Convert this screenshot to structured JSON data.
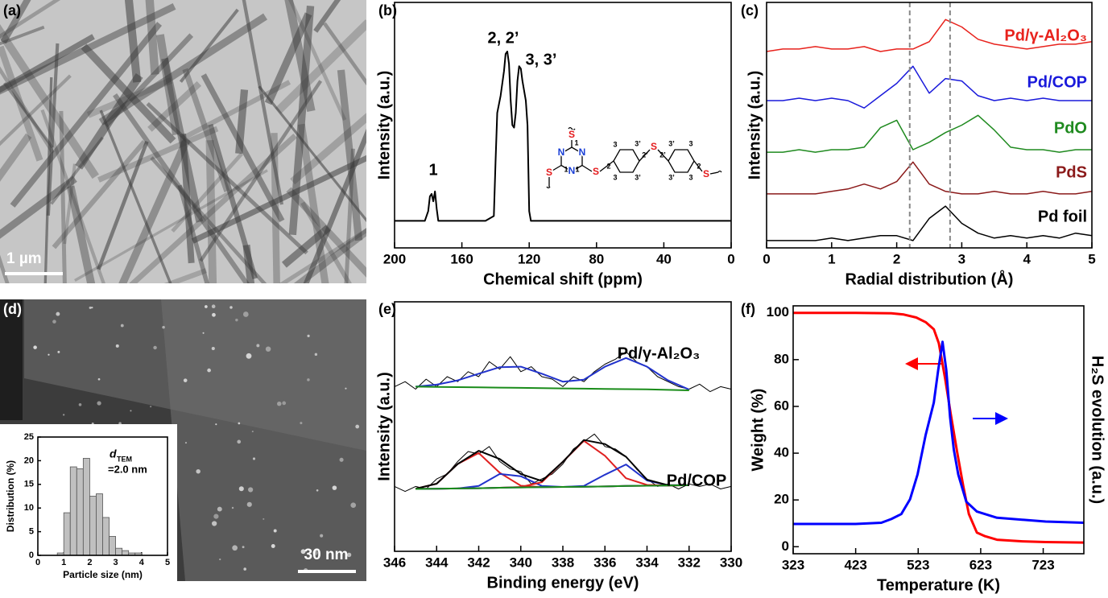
{
  "images": [
    {
      "panel_label": "(a)",
      "scale_bar": "1 µm"
    },
    {
      "panel_label": "(d)",
      "scale_bar": "30 nm"
    }
  ],
  "chart_data": [
    {
      "type": "line",
      "panel_label": "(b)",
      "x_label": "Chemical shift (ppm)",
      "y_label": "Intensity (a.u.)",
      "annotations": [
        "1",
        "2, 2’",
        "3, 3’"
      ],
      "structure_labels": [
        "S",
        "S",
        "S",
        "S",
        "S",
        "N",
        "N",
        "N",
        "1",
        "1",
        "1",
        "2",
        "3",
        "3’",
        "2’",
        "3",
        "3’",
        "2’",
        "3’",
        "3",
        "2",
        "3’",
        "3"
      ],
      "x": [
        200,
        190,
        182,
        180,
        179,
        178,
        177,
        176,
        175,
        174,
        160,
        146,
        141,
        140,
        139,
        137,
        135,
        134,
        133,
        132,
        131,
        130,
        129,
        128,
        127,
        126,
        125,
        124,
        122,
        121,
        120,
        119,
        100,
        60,
        0
      ],
      "series": [
        {
          "color": "#000000",
          "values": [
            0.11,
            0.11,
            0.11,
            0.15,
            0.21,
            0.22,
            0.19,
            0.23,
            0.16,
            0.11,
            0.11,
            0.11,
            0.13,
            0.35,
            0.55,
            0.62,
            0.72,
            0.79,
            0.8,
            0.75,
            0.6,
            0.5,
            0.49,
            0.55,
            0.68,
            0.74,
            0.73,
            0.68,
            0.6,
            0.5,
            0.15,
            0.11,
            0.11,
            0.11,
            0.11
          ]
        }
      ],
      "xlim": [
        200,
        0
      ],
      "xticks": [
        200,
        160,
        120,
        80,
        40,
        0
      ],
      "ylim": [
        0,
        1
      ]
    },
    {
      "type": "line",
      "panel_label": "(c)",
      "x_label": "Radial distribution (Å)",
      "y_label": "Intensity (a.u.)",
      "x": [
        0,
        0.25,
        0.5,
        0.75,
        1,
        1.25,
        1.5,
        1.75,
        2,
        2.25,
        2.5,
        2.75,
        3,
        3.25,
        3.5,
        3.75,
        4,
        4.25,
        4.5,
        4.75,
        5
      ],
      "series": [
        {
          "name": "Pd/γ-Al₂O₃",
          "color": "#e8221c",
          "values": [
            0.8,
            0.81,
            0.81,
            0.82,
            0.81,
            0.81,
            0.82,
            0.8,
            0.81,
            0.81,
            0.84,
            0.93,
            0.9,
            0.85,
            0.83,
            0.82,
            0.81,
            0.82,
            0.83,
            0.83,
            0.84
          ]
        },
        {
          "name": "Pd/COP",
          "color": "#1a1adb",
          "values": [
            0.6,
            0.6,
            0.61,
            0.6,
            0.61,
            0.6,
            0.57,
            0.62,
            0.67,
            0.74,
            0.63,
            0.69,
            0.68,
            0.62,
            0.6,
            0.61,
            0.6,
            0.61,
            0.6,
            0.6,
            0.6
          ]
        },
        {
          "name": "PdO",
          "color": "#1f8a1f",
          "values": [
            0.39,
            0.39,
            0.4,
            0.39,
            0.4,
            0.4,
            0.41,
            0.49,
            0.52,
            0.4,
            0.43,
            0.47,
            0.5,
            0.54,
            0.48,
            0.41,
            0.4,
            0.4,
            0.39,
            0.4,
            0.4
          ]
        },
        {
          "name": "PdS",
          "color": "#8b1a1a",
          "values": [
            0.22,
            0.22,
            0.22,
            0.22,
            0.23,
            0.24,
            0.26,
            0.24,
            0.27,
            0.35,
            0.26,
            0.23,
            0.22,
            0.22,
            0.23,
            0.22,
            0.22,
            0.23,
            0.22,
            0.22,
            0.23
          ]
        },
        {
          "name": "Pd foil",
          "color": "#000000",
          "values": [
            0.03,
            0.03,
            0.03,
            0.03,
            0.04,
            0.03,
            0.04,
            0.05,
            0.05,
            0.03,
            0.12,
            0.17,
            0.1,
            0.06,
            0.04,
            0.05,
            0.04,
            0.05,
            0.04,
            0.06,
            0.05
          ]
        }
      ],
      "ref_lines": [
        2.2,
        2.82
      ],
      "xlim": [
        0,
        5
      ],
      "xticks": [
        0,
        1,
        2,
        3,
        4,
        5
      ],
      "ylim": [
        0,
        1
      ]
    },
    {
      "type": "histogram",
      "x_label": "Particle size (nm)",
      "y_label": "Distribution (%)",
      "annotation": {
        "symbol": "d",
        "subscript": "TEM",
        "text": "=2.0 nm"
      },
      "bins": [
        0.75,
        1,
        1.25,
        1.5,
        1.75,
        2,
        2.25,
        2.5,
        2.75,
        3,
        3.25,
        3.5,
        3.75,
        4
      ],
      "values": [
        0.5,
        9,
        18.7,
        18.3,
        20.5,
        12.5,
        13,
        8,
        4,
        1.5,
        1,
        0.5,
        0.5
      ],
      "color": "#c0c0c0",
      "xlim": [
        0,
        5
      ],
      "xticks": [
        0,
        1,
        2,
        3,
        4,
        5
      ],
      "ylim": [
        0,
        25
      ],
      "yticks": [
        0,
        5,
        10,
        15,
        20,
        25
      ]
    },
    {
      "type": "line",
      "panel_label": "(e)",
      "x_label": "Binding energy (eV)",
      "y_label": "Intensity (a.u.)",
      "annotations": [
        "Pd/γ-Al₂O₃",
        "Pd/COP"
      ],
      "series": [
        {
          "color": "#000000",
          "x": [
            346,
            345.5,
            345,
            344.5,
            344,
            343.5,
            343,
            342.5,
            342,
            341.5,
            341,
            340.5,
            340,
            339.5,
            339,
            338.5,
            338,
            337.5,
            337,
            336.5,
            336,
            335.5,
            335,
            334.5,
            334,
            333.5,
            333,
            332.5,
            332,
            331.5,
            331,
            330.5,
            330
          ],
          "values": [
            0.66,
            0.68,
            0.65,
            0.69,
            0.66,
            0.7,
            0.68,
            0.72,
            0.7,
            0.76,
            0.73,
            0.78,
            0.72,
            0.74,
            0.7,
            0.69,
            0.66,
            0.7,
            0.68,
            0.72,
            0.75,
            0.77,
            0.8,
            0.76,
            0.74,
            0.7,
            0.68,
            0.66,
            0.65,
            0.67,
            0.64,
            0.66,
            0.65
          ]
        },
        {
          "color": "#000000",
          "x": [
            346,
            345.5,
            345,
            344.5,
            344,
            343.5,
            343,
            342.5,
            342,
            341.5,
            341,
            340.5,
            340,
            339.5,
            339,
            338.5,
            338,
            337.5,
            337,
            336.5,
            336,
            335.5,
            335,
            334.5,
            334,
            333.5,
            333,
            332.5,
            332,
            331.5,
            331,
            330.5,
            330
          ],
          "values": [
            0.26,
            0.24,
            0.26,
            0.25,
            0.29,
            0.31,
            0.36,
            0.4,
            0.39,
            0.42,
            0.36,
            0.33,
            0.32,
            0.27,
            0.29,
            0.31,
            0.35,
            0.41,
            0.44,
            0.47,
            0.42,
            0.41,
            0.38,
            0.33,
            0.29,
            0.26,
            0.27,
            0.25,
            0.27,
            0.26,
            0.27,
            0.25,
            0.26
          ]
        },
        {
          "color": "#e02020",
          "x": [
            346,
            345,
            344,
            343,
            342,
            341,
            340,
            339,
            338,
            337,
            336,
            335,
            334,
            333,
            332,
            331,
            330
          ],
          "values": [
            null,
            0.251,
            0.271,
            0.35,
            0.394,
            0.315,
            0.263,
            0.257,
            0.258,
            0.259,
            0.26,
            0.262,
            0.263,
            0.264,
            0.265,
            null,
            null
          ]
        },
        {
          "color": "#2233cc",
          "x": [
            346,
            345,
            344,
            343,
            342,
            341,
            340,
            339,
            338,
            337,
            336,
            335,
            334,
            333,
            332,
            331,
            330
          ],
          "values": [
            null,
            0.25,
            0.251,
            0.252,
            0.262,
            0.31,
            0.301,
            0.262,
            0.258,
            0.259,
            0.26,
            0.262,
            0.263,
            0.264,
            0.265,
            null,
            null
          ]
        },
        {
          "color": "#e02020",
          "x": [
            346,
            345,
            344,
            343,
            342,
            341,
            340,
            339,
            338,
            337,
            336,
            335,
            334,
            333,
            332,
            331,
            330
          ],
          "values": [
            null,
            0.25,
            0.251,
            0.252,
            0.253,
            0.255,
            0.258,
            0.277,
            0.359,
            0.443,
            0.383,
            0.293,
            0.266,
            0.264,
            0.265,
            null,
            null
          ]
        },
        {
          "color": "#2233cc",
          "x": [
            346,
            345,
            344,
            343,
            342,
            341,
            340,
            339,
            338,
            337,
            336,
            335,
            334,
            333,
            332,
            331,
            330
          ],
          "values": [
            null,
            0.25,
            0.251,
            0.252,
            0.253,
            0.255,
            0.256,
            0.257,
            0.258,
            0.262,
            0.307,
            0.348,
            0.284,
            0.265,
            0.265,
            null,
            null
          ]
        },
        {
          "color": "#000000",
          "x": [
            346,
            345,
            344,
            343,
            342,
            341,
            340,
            339,
            338,
            337,
            336,
            335,
            334,
            333,
            332,
            331,
            330
          ],
          "values": [
            null,
            0.251,
            0.271,
            0.35,
            0.403,
            0.37,
            0.31,
            0.282,
            0.359,
            0.446,
            0.43,
            0.379,
            0.287,
            0.265,
            0.265,
            null,
            null
          ]
        },
        {
          "color": "#2233cc",
          "x": [
            346,
            345,
            344,
            343,
            342,
            341,
            340,
            339,
            338,
            337,
            336,
            335,
            334,
            333,
            332,
            331,
            330
          ],
          "values": [
            null,
            0.66,
            0.668,
            0.685,
            0.712,
            0.738,
            0.74,
            0.712,
            0.68,
            0.688,
            0.74,
            0.775,
            0.74,
            0.685,
            0.648,
            null,
            null
          ]
        },
        {
          "color": "#1a8c1a",
          "x": [
            346,
            345,
            344,
            343,
            342,
            341,
            340,
            339,
            338,
            337,
            336,
            335,
            334,
            333,
            332,
            331,
            330
          ],
          "values": [
            null,
            0.66,
            0.659,
            0.658,
            0.657,
            0.656,
            0.655,
            0.654,
            0.653,
            0.652,
            0.651,
            0.65,
            0.649,
            0.647,
            0.645,
            null,
            null
          ]
        },
        {
          "color": "#1a8c1a",
          "x": [
            346,
            345,
            344,
            343,
            342,
            341,
            340,
            339,
            338,
            337,
            336,
            335,
            334,
            333,
            332,
            331,
            330
          ],
          "values": [
            null,
            0.25,
            0.251,
            0.252,
            0.253,
            0.255,
            0.256,
            0.257,
            0.258,
            0.259,
            0.26,
            0.262,
            0.263,
            0.264,
            0.265,
            null,
            null
          ]
        }
      ],
      "xlim": [
        346,
        330
      ],
      "xticks": [
        346,
        344,
        342,
        340,
        338,
        336,
        334,
        332,
        330
      ],
      "ylim": [
        0,
        1
      ]
    },
    {
      "type": "line",
      "panel_label": "(f)",
      "x_label": "Temperature (K)",
      "y_label": "Weight (%)",
      "y2_label": "H₂S evolution (a.u.)",
      "series": [
        {
          "color": "#ff0000",
          "x": [
            323,
            423,
            480,
            500,
            520,
            535,
            548,
            556,
            566,
            575,
            585,
            595,
            604,
            617,
            630,
            649,
            690,
            727,
            788
          ],
          "values": [
            100,
            100,
            99.8,
            99.3,
            98,
            96,
            93,
            87,
            72,
            57,
            41,
            26,
            14,
            6,
            4.5,
            3,
            2.3,
            2,
            1.8
          ]
        },
        {
          "color": "#0000ff",
          "axis": "y2",
          "x": [
            323,
            423,
            464,
            480,
            496,
            510,
            522,
            535,
            548,
            555,
            562,
            568,
            574,
            580,
            587,
            600,
            617,
            649,
            727,
            788
          ],
          "values": [
            0.12,
            0.12,
            0.125,
            0.14,
            0.16,
            0.22,
            0.32,
            0.48,
            0.61,
            0.74,
            0.855,
            0.74,
            0.55,
            0.42,
            0.32,
            0.21,
            0.17,
            0.145,
            0.13,
            0.125
          ]
        }
      ],
      "xlim": [
        323,
        788
      ],
      "xticks": [
        323,
        423,
        523,
        623,
        723
      ],
      "ylim": [
        -3,
        103
      ],
      "yticks": [
        0,
        20,
        40,
        60,
        80,
        100
      ],
      "y2lim": [
        0,
        1
      ]
    }
  ]
}
